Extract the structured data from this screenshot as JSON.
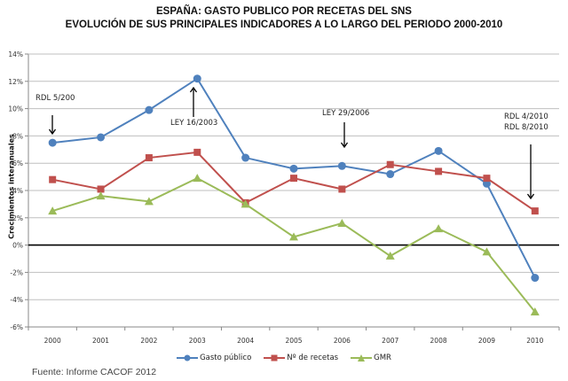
{
  "chart_data": {
    "type": "line",
    "title": "ESPAÑA: GASTO PUBLICO POR RECETAS DEL SNS",
    "subtitle": "EVOLUCIÓN DE SUS PRINCIPALES INDICADORES A LO LARGO DEL PERIODO 2000-2010",
    "xlabel": "",
    "ylabel": "Crecimientos interanuales",
    "categories": [
      "2000",
      "2001",
      "2002",
      "2003",
      "2004",
      "2005",
      "2006",
      "2007",
      "2008",
      "2009",
      "2010"
    ],
    "ylim": [
      -6,
      14
    ],
    "yticks": [
      14,
      12,
      10,
      8,
      6,
      4,
      2,
      0,
      -2,
      -4,
      -6
    ],
    "ytick_labels": [
      "14%",
      "12%",
      "10%",
      "8%",
      "6%",
      "4%",
      "2%",
      "0%",
      "-2%",
      "-4%",
      "-6%"
    ],
    "grid": true,
    "legend_position": "bottom",
    "series": [
      {
        "name": "Gasto público",
        "color": "#4f81bd",
        "marker": "circle",
        "values": [
          7.5,
          7.9,
          9.9,
          12.2,
          6.4,
          5.6,
          5.8,
          5.2,
          6.9,
          4.5,
          -2.4
        ]
      },
      {
        "name": "Nº de recetas",
        "color": "#c0504d",
        "marker": "square",
        "values": [
          4.8,
          4.1,
          6.4,
          6.8,
          3.1,
          4.9,
          4.1,
          5.9,
          5.4,
          4.9,
          2.5
        ]
      },
      {
        "name": "GMR",
        "color": "#9bbb59",
        "marker": "triangle",
        "values": [
          2.5,
          3.6,
          3.2,
          4.9,
          3.0,
          0.6,
          1.6,
          -0.8,
          1.2,
          -0.5,
          -4.9
        ]
      }
    ],
    "annotations": [
      {
        "text": [
          "RDL 5/200"
        ],
        "year": "2000",
        "arrow": "down"
      },
      {
        "text": [
          "LEY 16/2003"
        ],
        "year": "2003",
        "arrow": "up"
      },
      {
        "text": [
          "LEY 29/2006"
        ],
        "year": "2006",
        "arrow": "down"
      },
      {
        "text": [
          "RDL 4/2010",
          "RDL 8/2010"
        ],
        "year": "2010",
        "arrow": "down"
      }
    ]
  },
  "source": "Fuente:  Informe CACOF 2012"
}
